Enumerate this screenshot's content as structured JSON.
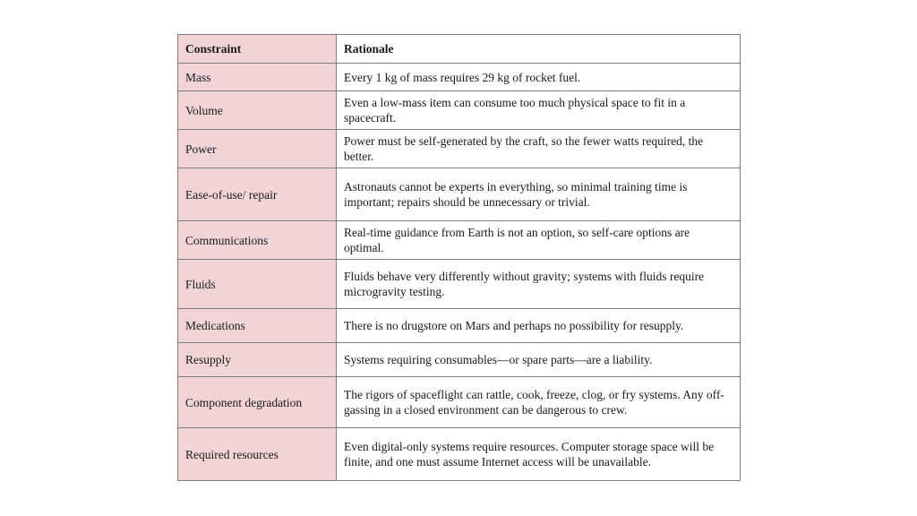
{
  "table": {
    "headers": [
      "Constraint",
      "Rationale"
    ],
    "rows": [
      {
        "constraint": "Mass",
        "rationale": "Every 1 kg of mass requires 29 kg of rocket fuel."
      },
      {
        "constraint": "Volume",
        "rationale": "Even a low-mass item can consume too much physical space to fit in a spacecraft."
      },
      {
        "constraint": "Power",
        "rationale": "Power must be self-generated by the craft, so the fewer watts required, the better."
      },
      {
        "constraint": "Ease-of-use/ repair",
        "rationale": "Astronauts cannot be experts in everything, so minimal training time is important; repairs should be unnecessary or trivial."
      },
      {
        "constraint": "Communications",
        "rationale": "Real-time guidance from Earth is not an option, so self-care options are optimal."
      },
      {
        "constraint": "Fluids",
        "rationale": "Fluids behave very differently without gravity; systems with fluids require microgravity testing."
      },
      {
        "constraint": "Medications",
        "rationale": "There is no drugstore on Mars and perhaps no possibility for resupply."
      },
      {
        "constraint": "Resupply",
        "rationale": "Systems requiring consumables—or spare parts—are a liability."
      },
      {
        "constraint": "Component degradation",
        "rationale": "The rigors of spaceflight can rattle, cook, freeze, clog, or fry systems. Any off-gassing in a closed environment can be dangerous to crew."
      },
      {
        "constraint": "Required resources",
        "rationale": "Even digital-only systems require resources. Computer storage space will be finite, and one must assume Internet access will be unavailable."
      }
    ]
  },
  "colors": {
    "constraint_column": "#f2d4d7",
    "border": "#7d7d7d"
  }
}
